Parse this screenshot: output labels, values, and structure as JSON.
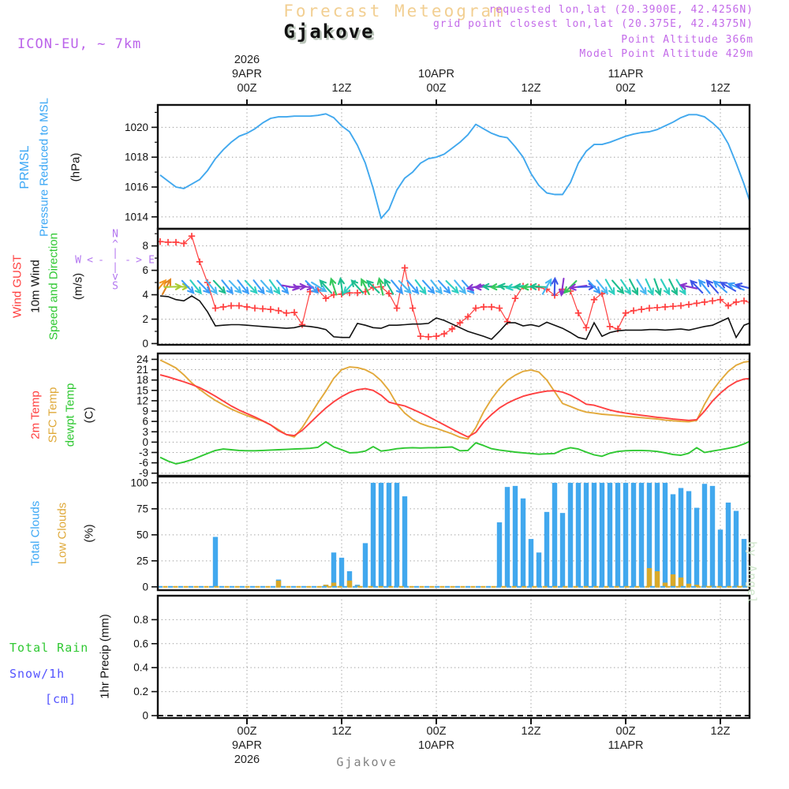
{
  "header": {
    "title": "Forecast Meteogram",
    "station": "Gjakove",
    "model": "ICON-EU, ~ 7km",
    "requested": "requested lon,lat (20.3900E, 42.4256N)",
    "grid_point": "grid point closest lon,lat (20.375E, 42.4375N)",
    "point_altitude": "Point Altitude 366m",
    "model_altitude": "Model Point Altitude 429m"
  },
  "footer": {
    "station": "Gjakove"
  },
  "watermark": "by Angel",
  "compass": {
    "north": "N",
    "south": "S",
    "east": "E",
    "west": "W",
    "up": "^",
    "down": "v",
    "left": "<",
    "right": ">",
    "bar": "|",
    "dash": "-"
  },
  "left_labels": {
    "pressure": [
      "PRMSL",
      "Pressure Reduced to MSL",
      "(hPa)"
    ],
    "wind": [
      "Wind GUST",
      "10m Wind",
      "Speed and Direction",
      "(m/s)"
    ],
    "temp": [
      "2m Temp",
      "SFC Temp",
      "dewpt Temp",
      "(C)"
    ],
    "clouds": [
      "Total Clouds",
      "Low Clouds",
      "(%)"
    ],
    "precip": [
      "Total  Rain",
      "Snow/1h",
      "[cm]",
      "1hr Precip (mm)"
    ]
  },
  "chart_data": {
    "type": "line",
    "title": "Forecast Meteogram - Gjakove",
    "x_axis": {
      "unit": "hours relative to 9APR 2026 00Z",
      "domain": [
        -11.3,
        63.7
      ],
      "grid": "dotted"
    },
    "time_ticks": [
      {
        "h": 0,
        "top": [
          "2026",
          "9APR",
          "00Z"
        ],
        "bottom": [
          "00Z",
          "9APR",
          "2026"
        ]
      },
      {
        "h": 12,
        "top": [
          "12Z"
        ],
        "bottom": [
          "12Z"
        ]
      },
      {
        "h": 24,
        "top": [
          "10APR",
          "00Z"
        ],
        "bottom": [
          "00Z",
          "10APR"
        ]
      },
      {
        "h": 36,
        "top": [
          "12Z"
        ],
        "bottom": [
          "12Z"
        ]
      },
      {
        "h": 48,
        "top": [
          "11APR",
          "00Z"
        ],
        "bottom": [
          "00Z",
          "11APR"
        ]
      },
      {
        "h": 60,
        "top": [
          "12Z"
        ],
        "bottom": [
          "12Z"
        ]
      }
    ],
    "start_hour": -11,
    "panels": {
      "pressure": {
        "ylabel": "PRMSL Pressure Reduced to MSL (hPa)",
        "ylim": [
          1013.2,
          1021.5
        ],
        "yticks": [
          1014,
          1016,
          1018,
          1020
        ]
      },
      "wind": {
        "ylabel": "Wind GUST / 10m Wind Speed and Direction (m/s)",
        "ylim": [
          -0.1,
          9.4
        ],
        "yticks": [
          0,
          2,
          4,
          6,
          8
        ]
      },
      "temp": {
        "ylabel": "2m Temp / SFC Temp / dewpt Temp (C)",
        "ylim": [
          -9.75,
          25.7
        ],
        "yticks": [
          -9,
          -6,
          -3,
          0,
          3,
          6,
          9,
          12,
          15,
          18,
          21,
          24
        ]
      },
      "clouds": {
        "ylabel": "Total Clouds / Low Clouds (%)",
        "ylim": [
          -3.2,
          106
        ],
        "yticks": [
          0,
          25,
          50,
          75,
          100
        ]
      },
      "precip": {
        "ylabel": "1hr Precip (mm)",
        "ylim": [
          -0.02,
          1.0
        ],
        "yticks": [
          0,
          0.2,
          0.4,
          0.6,
          0.8
        ]
      }
    },
    "series": {
      "prmsl_hpa": [
        1016.8,
        1016.4,
        1016.0,
        1015.9,
        1016.2,
        1016.5,
        1017.1,
        1017.9,
        1018.5,
        1019.0,
        1019.4,
        1019.6,
        1019.9,
        1020.3,
        1020.6,
        1020.7,
        1020.7,
        1020.75,
        1020.75,
        1020.75,
        1020.8,
        1020.9,
        1020.65,
        1020.1,
        1019.7,
        1018.8,
        1017.6,
        1015.9,
        1013.9,
        1014.5,
        1015.8,
        1016.6,
        1017.0,
        1017.6,
        1017.9,
        1018.0,
        1018.2,
        1018.6,
        1019.0,
        1019.5,
        1020.2,
        1019.9,
        1019.6,
        1019.4,
        1019.3,
        1018.7,
        1018.0,
        1016.9,
        1016.1,
        1015.6,
        1015.5,
        1015.5,
        1016.3,
        1017.6,
        1018.4,
        1018.85,
        1018.85,
        1019.0,
        1019.2,
        1019.4,
        1019.55,
        1019.65,
        1019.7,
        1019.85,
        1020.1,
        1020.35,
        1020.65,
        1020.85,
        1020.85,
        1020.7,
        1020.3,
        1019.8,
        1018.9,
        1017.6,
        1016.2,
        1014.6,
        1013.8
      ],
      "gust_ms": [
        8.35,
        8.3,
        8.3,
        8.2,
        8.8,
        6.7,
        5.0,
        2.9,
        3.0,
        3.1,
        3.1,
        3.0,
        2.9,
        2.85,
        2.8,
        2.7,
        2.5,
        2.55,
        1.55,
        4.25,
        4.4,
        3.7,
        4.0,
        4.05,
        4.15,
        4.15,
        4.25,
        4.6,
        4.65,
        4.1,
        2.9,
        6.2,
        2.9,
        0.6,
        0.55,
        0.6,
        0.8,
        1.2,
        1.7,
        2.2,
        2.9,
        3.0,
        3.0,
        2.9,
        1.8,
        3.7,
        4.7,
        4.65,
        4.6,
        4.45,
        3.95,
        4.45,
        4.3,
        2.5,
        1.3,
        3.6,
        4.1,
        1.4,
        1.2,
        2.5,
        2.7,
        2.8,
        2.9,
        2.95,
        3.0,
        3.05,
        3.1,
        3.2,
        3.3,
        3.4,
        3.5,
        3.6,
        3.1,
        3.4,
        3.5,
        3.3,
        2.8
      ],
      "wind10_ms": [
        3.9,
        3.85,
        3.6,
        3.5,
        3.9,
        3.5,
        2.6,
        1.45,
        1.5,
        1.55,
        1.55,
        1.5,
        1.45,
        1.4,
        1.35,
        1.3,
        1.25,
        1.3,
        1.45,
        1.4,
        1.3,
        1.15,
        0.55,
        0.5,
        0.5,
        1.65,
        1.5,
        1.3,
        1.25,
        1.5,
        1.5,
        1.55,
        1.6,
        1.6,
        1.65,
        2.1,
        1.9,
        1.6,
        1.3,
        1.0,
        0.8,
        0.6,
        0.35,
        1.0,
        1.7,
        1.7,
        1.45,
        1.55,
        1.4,
        1.75,
        1.5,
        1.25,
        0.9,
        0.5,
        0.35,
        1.7,
        0.6,
        0.9,
        1.05,
        1.1,
        1.1,
        1.1,
        1.15,
        1.15,
        1.1,
        1.15,
        1.2,
        1.1,
        1.25,
        1.4,
        1.5,
        1.8,
        2.1,
        0.5,
        1.5,
        1.75,
        1.1
      ],
      "t2m_c": [
        19.5,
        18.9,
        18.2,
        17.5,
        16.7,
        15.8,
        14.6,
        13.3,
        11.9,
        10.5,
        9.3,
        8.3,
        7.3,
        6.2,
        5.0,
        3.3,
        2.2,
        1.9,
        3.4,
        5.6,
        7.8,
        9.9,
        11.7,
        13.2,
        14.4,
        15.2,
        15.5,
        15.0,
        13.6,
        11.6,
        11.0,
        10.5,
        9.5,
        8.5,
        7.4,
        6.2,
        5.0,
        3.8,
        2.6,
        1.5,
        2.8,
        5.8,
        8.0,
        9.9,
        11.3,
        12.4,
        13.3,
        13.9,
        14.4,
        14.8,
        14.9,
        14.5,
        13.6,
        12.4,
        11.0,
        10.7,
        10.0,
        9.3,
        8.8,
        8.4,
        8.1,
        7.8,
        7.5,
        7.2,
        7.0,
        6.7,
        6.5,
        6.3,
        6.5,
        9.0,
        11.9,
        14.2,
        16.1,
        17.5,
        18.3,
        18.5,
        17.2
      ],
      "sfc_c": [
        23.8,
        22.7,
        21.5,
        19.5,
        17.2,
        15.3,
        13.6,
        12.1,
        10.8,
        9.6,
        8.6,
        7.7,
        6.9,
        6.1,
        5.0,
        3.6,
        2.2,
        1.5,
        4.2,
        7.8,
        11.4,
        14.8,
        18.5,
        21.0,
        21.8,
        21.6,
        21.0,
        19.8,
        17.8,
        15.0,
        11.0,
        8.4,
        6.6,
        5.4,
        4.6,
        4.0,
        3.2,
        2.4,
        1.4,
        0.9,
        4.2,
        8.8,
        12.5,
        15.5,
        17.9,
        19.4,
        20.5,
        20.9,
        20.3,
        18.0,
        14.6,
        11.2,
        10.3,
        9.4,
        8.7,
        8.4,
        8.1,
        7.9,
        7.7,
        7.5,
        7.3,
        7.1,
        6.9,
        6.7,
        6.4,
        6.2,
        6.0,
        5.9,
        6.3,
        11.0,
        14.9,
        17.9,
        20.5,
        22.3,
        23.2,
        23.5,
        19.4
      ],
      "dewpt_c": [
        -4.4,
        -5.5,
        -6.3,
        -5.8,
        -5.1,
        -4.2,
        -3.3,
        -2.4,
        -2.0,
        -2.2,
        -2.4,
        -2.5,
        -2.5,
        -2.4,
        -2.3,
        -2.2,
        -2.1,
        -2.0,
        -1.9,
        -1.8,
        -1.5,
        0.1,
        -1.4,
        -2.2,
        -3.1,
        -3.0,
        -2.6,
        -1.3,
        -2.6,
        -2.3,
        -1.9,
        -1.7,
        -1.6,
        -1.7,
        -1.6,
        -1.6,
        -1.5,
        -1.4,
        -2.5,
        -2.4,
        -0.2,
        -1.0,
        -1.9,
        -2.3,
        -2.6,
        -2.9,
        -3.1,
        -3.3,
        -3.5,
        -3.4,
        -3.3,
        -2.2,
        -1.6,
        -2.0,
        -2.9,
        -3.7,
        -4.1,
        -3.2,
        -2.7,
        -2.5,
        -2.4,
        -2.4,
        -2.5,
        -2.7,
        -3.1,
        -3.6,
        -3.8,
        -3.2,
        -1.6,
        -3.0,
        -2.6,
        -2.2,
        -1.8,
        -1.3,
        -0.5,
        0.5,
        1.8
      ],
      "total_clouds_pct": [
        0,
        0,
        0,
        0,
        0,
        0,
        0,
        48,
        0,
        0,
        0,
        0,
        0,
        0,
        0,
        7,
        0,
        0,
        0,
        0,
        0,
        2,
        33,
        28,
        15,
        2,
        42,
        100,
        100,
        100,
        100,
        87,
        0,
        0,
        0,
        0,
        0,
        0,
        0,
        0,
        0,
        0,
        0,
        62,
        96,
        97,
        85,
        46,
        33,
        72,
        100,
        71,
        100,
        100,
        100,
        100,
        100,
        100,
        100,
        100,
        100,
        100,
        100,
        100,
        100,
        89,
        95,
        92,
        76,
        99,
        97,
        55,
        81,
        73,
        46,
        76,
        78
      ],
      "low_clouds_pct": [
        0,
        0,
        0,
        0,
        0,
        0,
        0,
        0,
        0,
        0,
        0,
        0,
        0,
        0,
        0,
        6,
        0,
        0,
        0,
        0,
        0,
        2,
        4,
        0,
        6,
        1,
        0,
        0,
        0,
        0,
        0,
        0,
        0,
        0,
        0,
        0,
        0,
        0,
        0,
        0,
        0,
        0,
        0,
        0,
        0,
        0,
        0,
        0,
        0,
        0,
        0,
        0,
        0,
        0,
        0,
        0,
        0,
        0,
        0,
        0,
        0,
        0,
        18,
        15,
        4,
        12,
        9,
        3,
        2,
        1,
        1,
        0,
        0,
        1,
        1,
        1,
        1
      ],
      "precip_1h_mm": {
        "all_zero": true,
        "note": "no precipitation shown, panel empty"
      },
      "rain_total": {
        "all_zero": true
      },
      "snow_1h_cm": {
        "all_zero": true
      }
    },
    "wind_arrows": {
      "baseline_ms": 4.65,
      "angle_convention": "degrees clockwise from up(N); arrow points downwind",
      "palette": [
        "#f59a23",
        "#e08420",
        "#a8cc33",
        "#3b9df8",
        "#49b8f2",
        "#2ecfc0",
        "#1dbd8e",
        "#34c95c",
        "#8a35ce",
        "#3d55e8"
      ],
      "arrows": [
        [
          -11,
          40,
          0
        ],
        [
          -10.2,
          28,
          1
        ],
        [
          -9.4,
          88,
          2
        ],
        [
          -8.5,
          90,
          2
        ],
        [
          -7.5,
          137,
          3
        ],
        [
          -6.5,
          141,
          5
        ],
        [
          -5.5,
          136,
          3
        ],
        [
          -4.5,
          142,
          4
        ],
        [
          -3.5,
          137,
          6
        ],
        [
          -2.5,
          141,
          3
        ],
        [
          -1.5,
          136,
          4
        ],
        [
          -0.5,
          141,
          3
        ],
        [
          0.5,
          137,
          5
        ],
        [
          1.5,
          142,
          3
        ],
        [
          2.5,
          138,
          4
        ],
        [
          3.5,
          144,
          5
        ],
        [
          4.5,
          139,
          3
        ],
        [
          5.5,
          100,
          8
        ],
        [
          6.4,
          88,
          8
        ],
        [
          7.3,
          93,
          8
        ],
        [
          8.2,
          135,
          3
        ],
        [
          9.1,
          122,
          4
        ],
        [
          10,
          318,
          6
        ],
        [
          11,
          342,
          7
        ],
        [
          12,
          352,
          6
        ],
        [
          13,
          222,
          5
        ],
        [
          14,
          318,
          6
        ],
        [
          15,
          333,
          7
        ],
        [
          16,
          315,
          6
        ],
        [
          17,
          347,
          7
        ],
        [
          18,
          330,
          6
        ],
        [
          19,
          140,
          3
        ],
        [
          20,
          136,
          4
        ],
        [
          21,
          139,
          3
        ],
        [
          22,
          143,
          5
        ],
        [
          23,
          138,
          3
        ],
        [
          24,
          141,
          4
        ],
        [
          25,
          137,
          3
        ],
        [
          26,
          135,
          5
        ],
        [
          27,
          140,
          4
        ],
        [
          28,
          138,
          3
        ],
        [
          29,
          258,
          8
        ],
        [
          30,
          266,
          8
        ],
        [
          31,
          272,
          6
        ],
        [
          32,
          268,
          7
        ],
        [
          33,
          276,
          6
        ],
        [
          34,
          262,
          5
        ],
        [
          35,
          270,
          6
        ],
        [
          36,
          266,
          7
        ],
        [
          37,
          272,
          6
        ],
        [
          38,
          30,
          4
        ],
        [
          39,
          2,
          9
        ],
        [
          40,
          188,
          8
        ],
        [
          41,
          225,
          7
        ],
        [
          42,
          262,
          8
        ],
        [
          43,
          88,
          9
        ],
        [
          44,
          137,
          3
        ],
        [
          45,
          141,
          4
        ],
        [
          46,
          150,
          5
        ],
        [
          47,
          139,
          6
        ],
        [
          48,
          146,
          5
        ],
        [
          49,
          152,
          6
        ],
        [
          50,
          148,
          4
        ],
        [
          51,
          155,
          5
        ],
        [
          52,
          160,
          6
        ],
        [
          53,
          151,
          5
        ],
        [
          54,
          153,
          6
        ],
        [
          55,
          149,
          5
        ],
        [
          56,
          282,
          8
        ],
        [
          57,
          316,
          9
        ],
        [
          58,
          321,
          3
        ],
        [
          59,
          318,
          9
        ],
        [
          60,
          311,
          3
        ],
        [
          61,
          300,
          9
        ],
        [
          62,
          292,
          3
        ],
        [
          63,
          284,
          9
        ]
      ]
    },
    "colors": {
      "pressure_line": "#41a8ee",
      "gust_line": "#ff4040",
      "wind10_line": "#111111",
      "t2m_line": "#ff4040",
      "sfc_line": "#e2a93b",
      "dewpt_line": "#2fc832",
      "clouds_total_bar": "#41a8ee",
      "clouds_low_bar": "#d9a929",
      "grid": "#9a9a9a",
      "axis": "#111111"
    }
  }
}
